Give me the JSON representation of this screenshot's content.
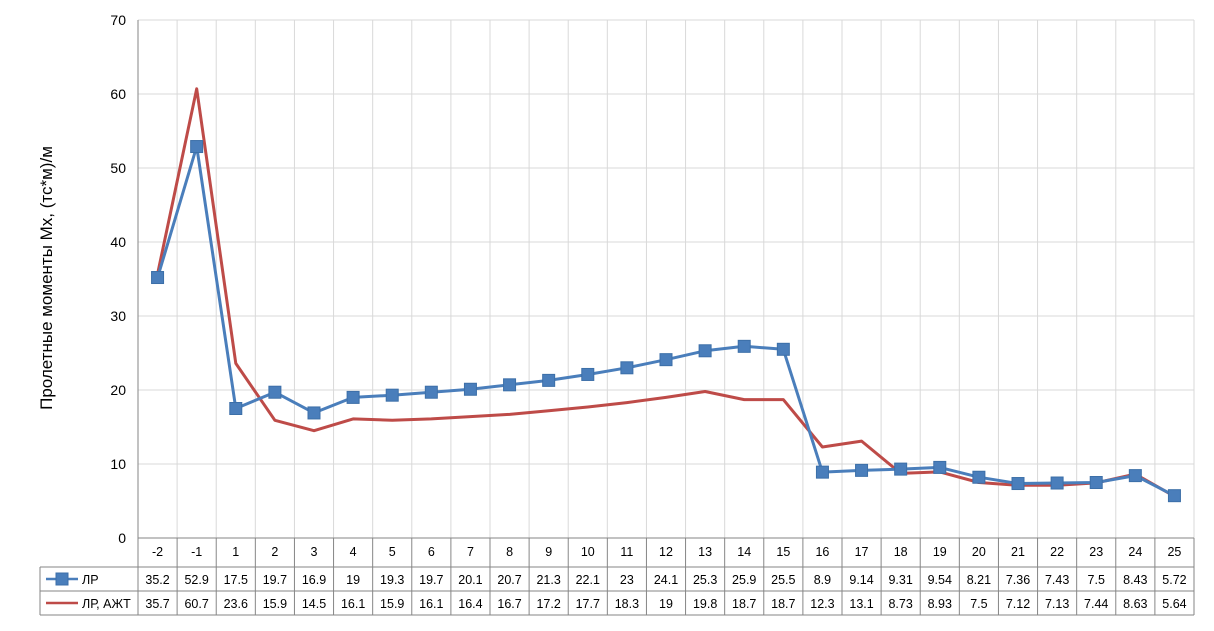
{
  "chart_data": {
    "type": "line",
    "title": "",
    "xlabel": "",
    "ylabel": "Пролетные моменты Mx, (тс*м)/м",
    "ylim": [
      0,
      70
    ],
    "yticks": [
      "0",
      "10",
      "20",
      "30",
      "40",
      "50",
      "60",
      "70"
    ],
    "grid": true,
    "legend": "data-table-left",
    "categories": [
      "-2",
      "-1",
      "1",
      "2",
      "3",
      "4",
      "5",
      "6",
      "7",
      "8",
      "9",
      "10",
      "11",
      "12",
      "13",
      "14",
      "15",
      "16",
      "17",
      "18",
      "19",
      "20",
      "21",
      "22",
      "23",
      "24",
      "25"
    ],
    "series": [
      {
        "name": "ЛР",
        "color": "#4a7ebb",
        "marker": "square",
        "values": [
          35.2,
          52.9,
          17.5,
          19.7,
          16.9,
          19,
          19.3,
          19.7,
          20.1,
          20.7,
          21.3,
          22.1,
          23,
          24.1,
          25.3,
          25.9,
          25.5,
          8.9,
          9.14,
          9.31,
          9.54,
          8.21,
          7.36,
          7.43,
          7.5,
          8.43,
          5.72
        ],
        "labels": [
          "35.2",
          "52.9",
          "17.5",
          "19.7",
          "16.9",
          "19",
          "19.3",
          "19.7",
          "20.1",
          "20.7",
          "21.3",
          "22.1",
          "23",
          "24.1",
          "25.3",
          "25.9",
          "25.5",
          "8.9",
          "9.14",
          "9.31",
          "9.54",
          "8.21",
          "7.36",
          "7.43",
          "7.5",
          "8.43",
          "5.72"
        ]
      },
      {
        "name": "ЛР, АЖТ",
        "color": "#be4b48",
        "marker": "none",
        "values": [
          35.7,
          60.7,
          23.6,
          15.9,
          14.5,
          16.1,
          15.9,
          16.1,
          16.4,
          16.7,
          17.2,
          17.7,
          18.3,
          19,
          19.8,
          18.7,
          18.7,
          12.3,
          13.1,
          8.73,
          8.93,
          7.5,
          7.12,
          7.13,
          7.44,
          8.63,
          5.64
        ],
        "labels": [
          "35.7",
          "60.7",
          "23.6",
          "15.9",
          "14.5",
          "16.1",
          "15.9",
          "16.1",
          "16.4",
          "16.7",
          "17.2",
          "17.7",
          "18.3",
          "19",
          "19.8",
          "18.7",
          "18.7",
          "12.3",
          "13.1",
          "8.73",
          "8.93",
          "7.5",
          "7.12",
          "7.13",
          "7.44",
          "8.63",
          "5.64"
        ]
      }
    ]
  }
}
